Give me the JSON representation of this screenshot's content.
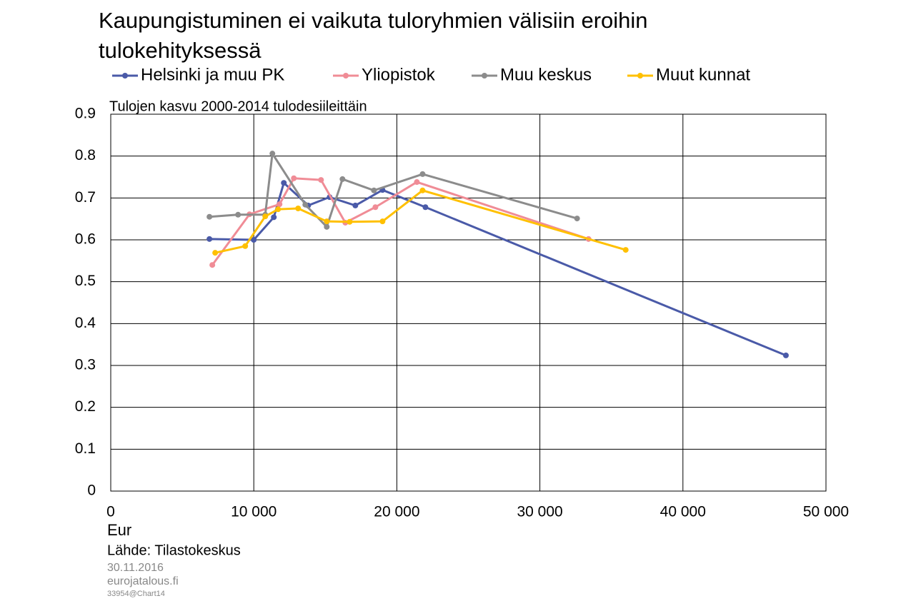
{
  "chart_data": {
    "type": "line",
    "title": "Kaupungistuminen ei vaikuta tuloryhmien välisiin eroihin tulokehityksessä",
    "subtitle": "Tulojen kasvu 2000-2014 tulodesiileittäin",
    "x_label": "Eur",
    "source": "Lähde: Tilastokeskus",
    "date": "30.11.2016",
    "site": "eurojatalous.fi",
    "chart_id": "33954@Chart14",
    "xlim": [
      0,
      50000
    ],
    "xticks": [
      0,
      {
        "value": 10000,
        "label": "10 000"
      },
      {
        "value": 20000,
        "label": "20 000"
      },
      {
        "value": 30000,
        "label": "30 000"
      },
      {
        "value": 40000,
        "label": "40 000"
      },
      {
        "value": 50000,
        "label": "50 000"
      }
    ],
    "ylim": [
      0,
      0.9
    ],
    "yticks": [
      0,
      0.1,
      0.2,
      0.3,
      0.4,
      0.5,
      0.6,
      0.7,
      0.8,
      0.9
    ],
    "grid": true,
    "series": [
      {
        "name": "Helsinki ja muu PK",
        "color": "#4a5aa8",
        "x": [
          6900,
          10000,
          11400,
          12100,
          13800,
          15300,
          17100,
          19000,
          22000,
          47200
        ],
        "values": [
          0.602,
          0.6,
          0.654,
          0.736,
          0.682,
          0.702,
          0.682,
          0.719,
          0.678,
          0.324
        ]
      },
      {
        "name": "Yliopistok",
        "color": "#f08c96",
        "x": [
          7100,
          9700,
          11800,
          12800,
          14700,
          16400,
          18500,
          21400,
          33400
        ],
        "values": [
          0.54,
          0.661,
          0.685,
          0.747,
          0.743,
          0.641,
          0.678,
          0.738,
          0.602
        ]
      },
      {
        "name": "Muu keskus",
        "color": "#8c8c8c",
        "x": [
          6900,
          8900,
          10800,
          11300,
          13600,
          15100,
          16200,
          18400,
          21800,
          32600
        ],
        "values": [
          0.655,
          0.66,
          0.66,
          0.806,
          0.684,
          0.631,
          0.745,
          0.718,
          0.757,
          0.651
        ]
      },
      {
        "name": "Muut kunnat",
        "color": "#ffc000",
        "x": [
          7300,
          9400,
          10800,
          11700,
          13100,
          15100,
          16700,
          19000,
          21800,
          36000
        ],
        "values": [
          0.569,
          0.585,
          0.656,
          0.673,
          0.675,
          0.644,
          0.643,
          0.644,
          0.718,
          0.576
        ]
      }
    ]
  }
}
